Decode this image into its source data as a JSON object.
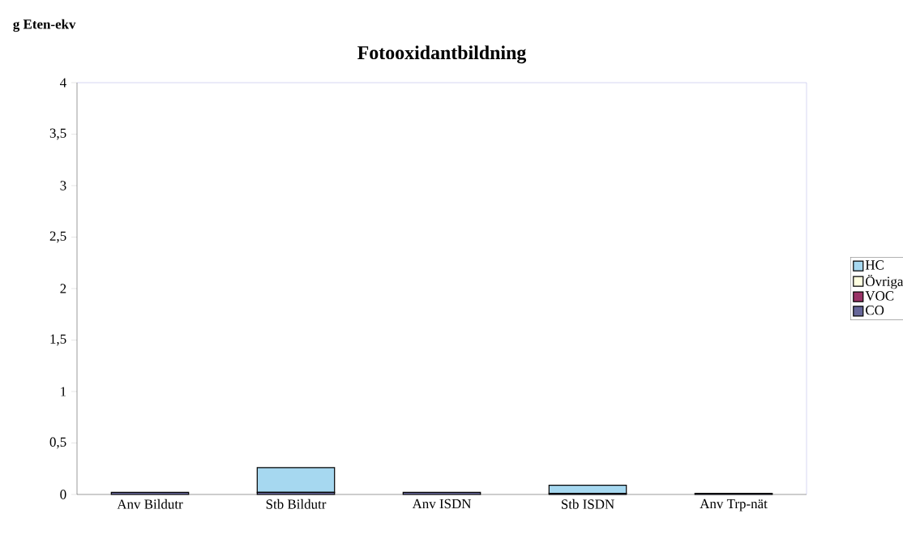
{
  "chart_data": {
    "type": "bar",
    "title": "Fotooxidantbildning",
    "ylabel": "g Eten-ekv",
    "categories": [
      "Anv Bildutr",
      "Stb Bildutr",
      "Anv ISDN",
      "Stb ISDN",
      "Anv Trp-nät"
    ],
    "series": [
      {
        "name": "CO",
        "color": "#666699",
        "values": [
          0.02,
          0.02,
          0.02,
          0.01,
          0.01
        ]
      },
      {
        "name": "VOC",
        "color": "#993366",
        "values": [
          0,
          0,
          0,
          0,
          0
        ]
      },
      {
        "name": "Övriga",
        "color": "#ffffe0",
        "values": [
          0,
          0,
          0,
          0,
          0
        ]
      },
      {
        "name": "HC",
        "color": "#a6d8f0",
        "values": [
          0,
          0.24,
          0,
          0.08,
          0
        ]
      }
    ],
    "stacked": true,
    "ylim": [
      0,
      4
    ],
    "yticks": [
      0,
      {
        "value": 0.5,
        "label": "0,5"
      },
      1,
      {
        "value": 1.5,
        "label": "1,5"
      },
      2,
      {
        "value": 2.5,
        "label": "2,5"
      },
      3,
      {
        "value": 3.5,
        "label": "3,5"
      },
      4
    ],
    "legend": "right"
  }
}
